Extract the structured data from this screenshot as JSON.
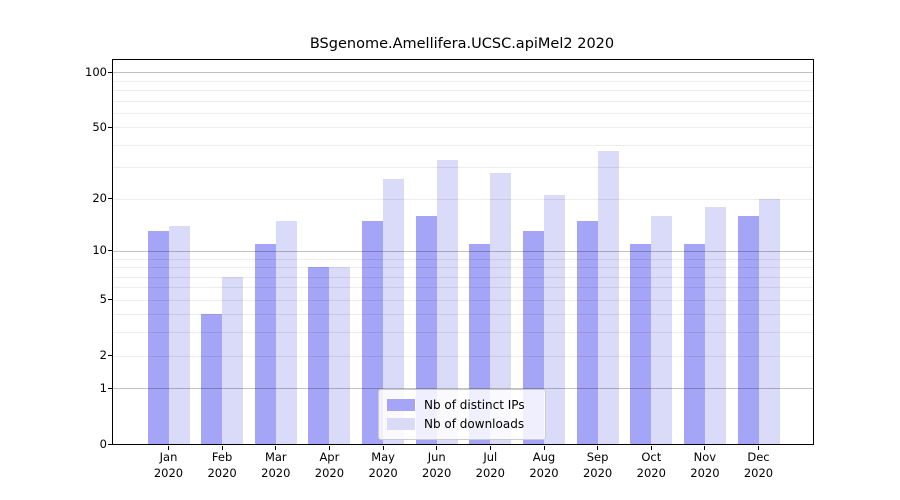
{
  "chart_data": {
    "type": "bar",
    "title": "BSgenome.Amellifera.UCSC.apiMel2 2020",
    "categories": [
      "Jan 2020",
      "Feb 2020",
      "Mar 2020",
      "Apr 2020",
      "May 2020",
      "Jun 2020",
      "Jul 2020",
      "Aug 2020",
      "Sep 2020",
      "Oct 2020",
      "Nov 2020",
      "Dec 2020"
    ],
    "series": [
      {
        "name": "Nb of distinct IPs",
        "color": "#a5a5f7",
        "values": [
          13,
          4,
          11,
          8,
          15,
          16,
          11,
          13,
          15,
          11,
          11,
          16
        ]
      },
      {
        "name": "Nb of downloads",
        "color": "#dadaf9",
        "values": [
          14,
          7,
          15,
          8,
          26,
          33,
          28,
          21,
          37,
          16,
          18,
          20
        ]
      }
    ],
    "y_scale": "log1p",
    "ylim": [
      0,
      117
    ],
    "y_ticks": [
      0,
      1,
      2,
      5,
      10,
      20,
      50,
      100
    ],
    "grid_major": [
      1,
      10,
      100
    ],
    "grid_minor": [
      2,
      3,
      4,
      5,
      6,
      7,
      8,
      9,
      20,
      30,
      40,
      50,
      60,
      70,
      80,
      90
    ],
    "legend_position": "bottom-center",
    "grid": true
  }
}
